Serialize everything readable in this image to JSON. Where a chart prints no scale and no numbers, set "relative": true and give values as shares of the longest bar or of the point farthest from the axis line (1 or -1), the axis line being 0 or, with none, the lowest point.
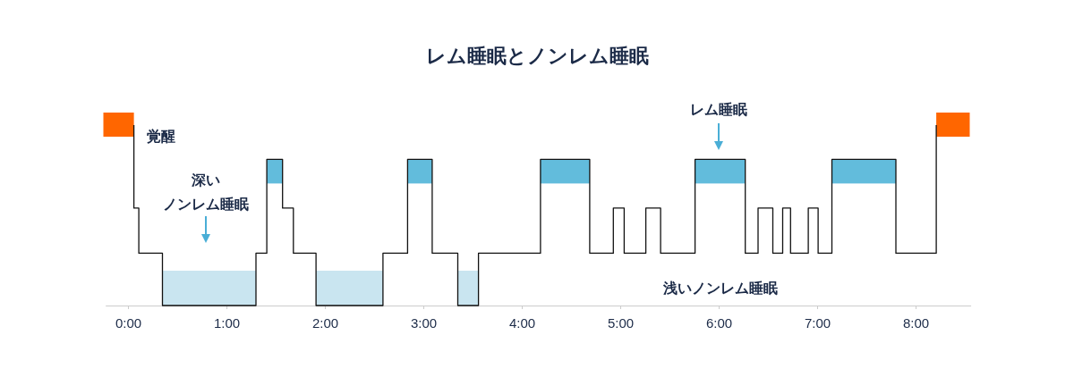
{
  "chart_data": {
    "type": "step",
    "title": "レム睡眠とノンレム睡眠",
    "relative": true,
    "series": [
      {
        "color": "#111111",
        "x": [
          0.06,
          0.06,
          0.11,
          0.35,
          1.3,
          1.41,
          1.57,
          1.68,
          1.91,
          2.59,
          2.84,
          3.09,
          3.35,
          3.56,
          4.19,
          4.69,
          4.93,
          5.04,
          5.26,
          5.41,
          5.76,
          6.27,
          6.4,
          6.55,
          6.65,
          6.73,
          6.91,
          7.01,
          7.15,
          7.8,
          8.21
        ],
        "values": [
          1,
          0.54,
          0.29,
          0,
          0.29,
          0.81,
          0.54,
          0.29,
          0,
          0.29,
          0.81,
          0.29,
          0,
          0.29,
          0.81,
          0.29,
          0.54,
          0.29,
          0.54,
          0.29,
          0.81,
          0.29,
          0.54,
          0.29,
          0.54,
          0.29,
          0.54,
          0.29,
          0.81,
          0.29,
          1
        ]
      }
    ],
    "xlim": [
      -0.23,
      8.56
    ],
    "xticks": [
      {
        "value": 0,
        "label": "0:00"
      },
      {
        "value": 1,
        "label": "1:00"
      },
      {
        "value": 2,
        "label": "2:00"
      },
      {
        "value": 3,
        "label": "3:00"
      },
      {
        "value": 4,
        "label": "4:00"
      },
      {
        "value": 5,
        "label": "5:00"
      },
      {
        "value": 6,
        "label": "6:00"
      },
      {
        "value": 7,
        "label": "7:00"
      },
      {
        "value": 8,
        "label": "8:00"
      }
    ],
    "bands": [
      {
        "axis": "x",
        "from": -0.25,
        "to": 0.06,
        "color": "#ff6600"
      },
      {
        "axis": "x",
        "from": 8.21,
        "to": 8.55,
        "color": "#ff6600"
      },
      {
        "axis": "x",
        "from": 1.41,
        "to": 1.57,
        "color": "#62bcdc"
      },
      {
        "axis": "x",
        "from": 2.84,
        "to": 3.09,
        "color": "#62bcdc"
      },
      {
        "axis": "x",
        "from": 4.19,
        "to": 4.69,
        "color": "#62bcdc"
      },
      {
        "axis": "x",
        "from": 5.76,
        "to": 6.27,
        "color": "#62bcdc"
      },
      {
        "axis": "x",
        "from": 7.15,
        "to": 7.8,
        "color": "#62bcdc"
      },
      {
        "axis": "x",
        "from": 0.35,
        "to": 1.3,
        "color": "#c9e5f0"
      },
      {
        "axis": "x",
        "from": 1.91,
        "to": 2.59,
        "color": "#c9e5f0"
      },
      {
        "axis": "x",
        "from": 3.35,
        "to": 3.56,
        "color": "#c9e5f0"
      }
    ],
    "annotations": [
      "覚醒",
      "深いノンレム睡眠",
      "レム睡眠",
      "浅いノンレム睡眠"
    ],
    "grid": false
  }
}
